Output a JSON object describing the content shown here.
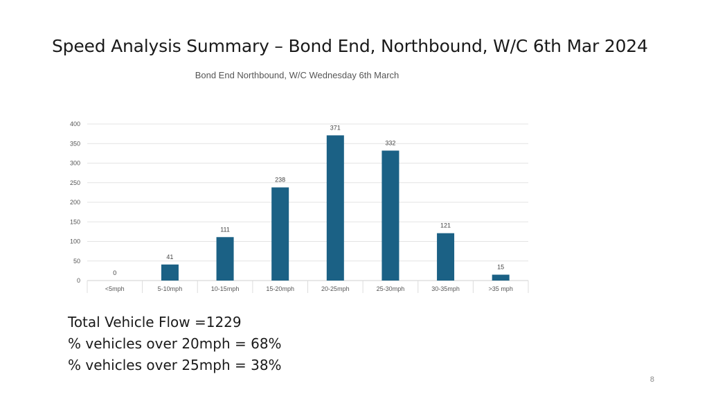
{
  "slide": {
    "title": "Speed Analysis Summary – Bond End, Northbound, W/C 6th Mar 2024",
    "summary_lines": [
      "Total Vehicle Flow =1229",
      "% vehicles over 20mph = 68%",
      "% vehicles over 25mph = 38%"
    ],
    "page_number": "8"
  },
  "chart_data": {
    "type": "bar",
    "title": "Bond End Northbound, W/C Wednesday 6th March",
    "categories": [
      "<5mph",
      "5-10mph",
      "10-15mph",
      "15-20mph",
      "20-25mph",
      "25-30mph",
      "30-35mph",
      ">35 mph"
    ],
    "values": [
      0,
      41,
      111,
      238,
      371,
      332,
      121,
      15
    ],
    "data_labels": [
      "0",
      "41",
      "111",
      "238",
      "371",
      "332",
      "121",
      "15"
    ],
    "xlabel": "",
    "ylabel": "",
    "ylim": [
      0,
      400
    ],
    "yticks": [
      0,
      50,
      100,
      150,
      200,
      250,
      300,
      350,
      400
    ],
    "grid": true,
    "legend": "none",
    "bar_color": "#1b6185"
  }
}
